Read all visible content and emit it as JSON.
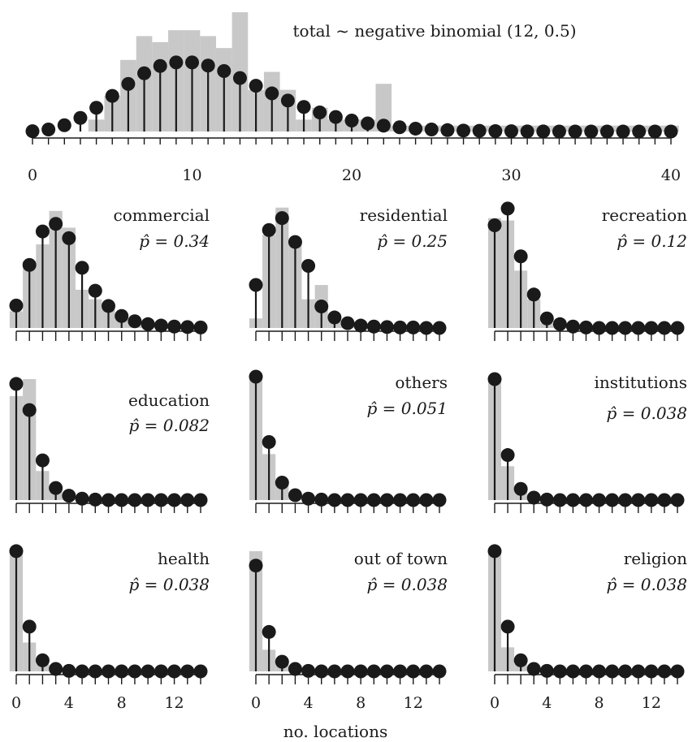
{
  "chart_data": [
    {
      "type": "bar",
      "title": "total ~ negative binomial (12, 0.5)",
      "subtitle": "",
      "xlabel": "",
      "ylabel": "",
      "xlim": [
        0,
        40
      ],
      "xticks": [
        0,
        10,
        20,
        30,
        40
      ],
      "ylim": [
        0,
        0.09
      ],
      "grid": false,
      "series": [
        {
          "values": [
            0.0,
            0.0,
            0.0,
            0.0,
            0.0087,
            0.0261,
            0.0522,
            0.0696,
            0.0652,
            0.0739,
            0.0739,
            0.0696,
            0.0609,
            0.087,
            0.0304,
            0.0435,
            0.0304,
            0.0087,
            0.0174,
            0.0087,
            0.0087,
            0.0087,
            0.0348,
            0.0043,
            0.0043,
            0.0043,
            0.0043,
            0.0043,
            0.0043,
            0.0043,
            0.0043,
            0.0043,
            0.0043,
            0.0043,
            0.0043,
            0.0043,
            0.0043,
            0.0043,
            0.0043,
            0.0043,
            0.0043
          ]
        },
        {
          "values": [
            0.0002,
            0.0015,
            0.0046,
            0.0099,
            0.0173,
            0.026,
            0.0347,
            0.0425,
            0.0478,
            0.0504,
            0.0504,
            0.0481,
            0.0441,
            0.039,
            0.0334,
            0.0278,
            0.0226,
            0.0179,
            0.0139,
            0.0106,
            0.008,
            0.0059,
            0.0043,
            0.0031,
            0.0021,
            0.0015,
            0.001,
            0.0007,
            0.0005,
            0.0003,
            0.0002,
            0.0001,
            0.0001,
            0.0,
            0.0,
            0.0,
            0.0,
            0.0,
            0.0,
            0.0,
            0.0
          ]
        }
      ]
    },
    {
      "type": "bar",
      "title": "commercial",
      "subtitle": "p̂ = 0.34",
      "xlim": [
        0,
        14
      ],
      "xticks": [
        0,
        4,
        8,
        12
      ],
      "ylim": [
        0,
        0.26
      ],
      "series": [
        {
          "values": [
            0.035,
            0.14,
            0.175,
            0.245,
            0.21,
            0.08,
            0.06,
            0.04,
            0.02,
            0.015,
            0.01,
            0.008,
            0.005,
            0.004,
            0.003
          ]
        },
        {
          "values": [
            0.047,
            0.132,
            0.202,
            0.218,
            0.188,
            0.126,
            0.078,
            0.046,
            0.025,
            0.014,
            0.008,
            0.005,
            0.003,
            0.002,
            0.001
          ]
        }
      ]
    },
    {
      "type": "bar",
      "title": "residential",
      "subtitle": "p̂ = 0.25",
      "xlim": [
        0,
        14
      ],
      "xticks": [
        0,
        4,
        8,
        12
      ],
      "ylim": [
        0,
        0.26
      ],
      "series": [
        {
          "values": [
            0.02,
            0.195,
            0.252,
            0.175,
            0.06,
            0.09,
            0.02,
            0.012,
            0.008,
            0.005,
            0.004,
            0.003,
            0.002,
            0.002,
            0.001
          ]
        },
        {
          "values": [
            0.09,
            0.205,
            0.23,
            0.18,
            0.13,
            0.045,
            0.022,
            0.01,
            0.005,
            0.003,
            0.002,
            0.001,
            0.001,
            0.0,
            0.0
          ]
        }
      ]
    },
    {
      "type": "bar",
      "title": "recreation",
      "subtitle": "p̂ = 0.12",
      "xlim": [
        0,
        14
      ],
      "xticks": [
        0,
        4,
        8,
        12
      ],
      "ylim": [
        0,
        0.26
      ],
      "series": [
        {
          "values": [
            0.23,
            0.225,
            0.12,
            0.06,
            0.01,
            0.005,
            0.003,
            0.002,
            0.001,
            0.001,
            0.0,
            0.0,
            0.0,
            0.0,
            0.0
          ]
        },
        {
          "values": [
            0.215,
            0.25,
            0.15,
            0.07,
            0.02,
            0.008,
            0.003,
            0.001,
            0.0,
            0.0,
            0.0,
            0.0,
            0.0,
            0.0,
            0.0
          ]
        }
      ]
    },
    {
      "type": "bar",
      "title": "education",
      "subtitle": "p̂ = 0.082",
      "xlim": [
        0,
        14
      ],
      "xticks": [
        0,
        4,
        8,
        12
      ],
      "ylim": [
        0,
        0.26
      ],
      "series": [
        {
          "values": [
            0.215,
            0.25,
            0.06,
            0.02,
            0.005,
            0.002,
            0.001,
            0.0,
            0.0,
            0.0,
            0.0,
            0.0,
            0.0,
            0.0,
            0.0
          ]
        },
        {
          "values": [
            0.24,
            0.186,
            0.082,
            0.025,
            0.009,
            0.003,
            0.001,
            0.0,
            0.0,
            0.0,
            0.0,
            0.0,
            0.0,
            0.0,
            0.0
          ]
        }
      ]
    },
    {
      "type": "bar",
      "title": "others",
      "subtitle": "p̂ = 0.051",
      "xlim": [
        0,
        14
      ],
      "xticks": [
        0,
        4,
        8,
        12
      ],
      "ylim": [
        0,
        0.26
      ],
      "series": [
        {
          "values": [
            0.26,
            0.095,
            0.04,
            0.015,
            0.005,
            0.002,
            0.001,
            0.0,
            0.0,
            0.0,
            0.0,
            0.0,
            0.0,
            0.0,
            0.0
          ]
        },
        {
          "values": [
            0.255,
            0.12,
            0.036,
            0.01,
            0.003,
            0.001,
            0.0,
            0.0,
            0.0,
            0.0,
            0.0,
            0.0,
            0.0,
            0.0,
            0.0
          ]
        }
      ]
    },
    {
      "type": "bar",
      "title": "institutions",
      "subtitle": "p̂ = 0.038",
      "xlim": [
        0,
        14
      ],
      "xticks": [
        0,
        4,
        8,
        12
      ],
      "ylim": [
        0,
        0.26
      ],
      "series": [
        {
          "values": [
            0.25,
            0.07,
            0.02,
            0.008,
            0.002,
            0.001,
            0.0,
            0.0,
            0.0,
            0.0,
            0.0,
            0.0,
            0.0,
            0.0,
            0.0
          ]
        },
        {
          "values": [
            0.25,
            0.093,
            0.023,
            0.005,
            0.001,
            0.0,
            0.0,
            0.0,
            0.0,
            0.0,
            0.0,
            0.0,
            0.0,
            0.0,
            0.0
          ]
        }
      ]
    },
    {
      "type": "bar",
      "title": "health",
      "subtitle": "p̂ = 0.038",
      "xlim": [
        0,
        14
      ],
      "xticks": [
        0,
        4,
        8,
        12
      ],
      "ylim": [
        0,
        0.26
      ],
      "series": [
        {
          "values": [
            0.255,
            0.06,
            0.015,
            0.005,
            0.002,
            0.001,
            0.0,
            0.0,
            0.0,
            0.0,
            0.0,
            0.0,
            0.0,
            0.0,
            0.0
          ]
        },
        {
          "values": [
            0.25,
            0.093,
            0.023,
            0.005,
            0.001,
            0.0,
            0.0,
            0.0,
            0.0,
            0.0,
            0.0,
            0.0,
            0.0,
            0.0,
            0.0
          ]
        }
      ]
    },
    {
      "type": "bar",
      "title": "out of town",
      "subtitle": "p̂ = 0.038",
      "xlim": [
        0,
        14
      ],
      "xticks": [
        0,
        4,
        8,
        12
      ],
      "ylim": [
        0,
        0.26
      ],
      "series": [
        {
          "values": [
            0.25,
            0.045,
            0.015,
            0.005,
            0.002,
            0.001,
            0.0,
            0.0,
            0.0,
            0.0,
            0.0,
            0.0,
            0.0,
            0.0,
            0.0
          ]
        },
        {
          "values": [
            0.22,
            0.082,
            0.02,
            0.005,
            0.001,
            0.0,
            0.0,
            0.0,
            0.0,
            0.0,
            0.0,
            0.0,
            0.0,
            0.0,
            0.0
          ]
        }
      ]
    },
    {
      "type": "bar",
      "title": "religion",
      "subtitle": "p̂ = 0.038",
      "xlim": [
        0,
        14
      ],
      "xticks": [
        0,
        4,
        8,
        12
      ],
      "ylim": [
        0,
        0.26
      ],
      "series": [
        {
          "values": [
            0.25,
            0.05,
            0.015,
            0.005,
            0.002,
            0.001,
            0.0,
            0.0,
            0.0,
            0.0,
            0.0,
            0.0,
            0.0,
            0.0,
            0.0
          ]
        },
        {
          "values": [
            0.25,
            0.093,
            0.023,
            0.005,
            0.001,
            0.0,
            0.0,
            0.0,
            0.0,
            0.0,
            0.0,
            0.0,
            0.0,
            0.0,
            0.0
          ]
        }
      ]
    }
  ],
  "shared_xlabel": "no. locations",
  "colors": {
    "bar_fill": "#c8c8c8",
    "lollipop": "#1a1a1a",
    "axis": "#1a1a1a",
    "background": "#ffffff"
  }
}
